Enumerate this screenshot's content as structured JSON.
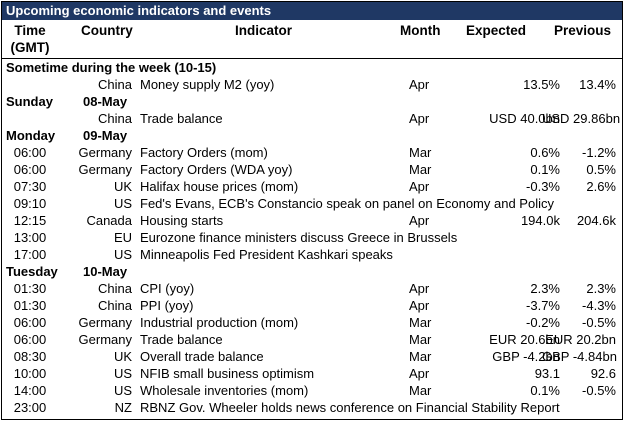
{
  "title": "Upcoming economic indicators and events",
  "headers": {
    "time": "Time",
    "time_sub": "(GMT)",
    "country": "Country",
    "indicator": "Indicator",
    "month": "Month",
    "expected": "Expected",
    "previous": "Previous"
  },
  "sections": [
    {
      "label": "Sometime during the week (10-15)",
      "day": "",
      "date": "",
      "rows": [
        {
          "time": "",
          "country": "China",
          "indicator": "Money supply M2 (yoy)",
          "month": "Apr",
          "expected": "13.5%",
          "previous": "13.4%"
        }
      ]
    },
    {
      "label": "",
      "day": "Sunday",
      "date": "08-May",
      "rows": [
        {
          "time": "",
          "country": "China",
          "indicator": "Trade balance",
          "month": "Apr",
          "expected": "USD 40.0bn",
          "previous": "USD 29.86bn"
        }
      ]
    },
    {
      "label": "",
      "day": "Monday",
      "date": "09-May",
      "rows": [
        {
          "time": "06:00",
          "country": "Germany",
          "indicator": "Factory Orders (mom)",
          "month": "Mar",
          "expected": "0.6%",
          "previous": "-1.2%"
        },
        {
          "time": "06:00",
          "country": "Germany",
          "indicator": "Factory Orders (WDA yoy)",
          "month": "Mar",
          "expected": "0.1%",
          "previous": "0.5%"
        },
        {
          "time": "07:30",
          "country": "UK",
          "indicator": "Halifax house prices (mom)",
          "month": "Apr",
          "expected": "-0.3%",
          "previous": "2.6%"
        },
        {
          "time": "09:10",
          "country": "US",
          "indicator": "Fed's Evans, ECB's Constancio speak on panel on Economy and Policy",
          "month": "",
          "expected": "",
          "previous": ""
        },
        {
          "time": "12:15",
          "country": "Canada",
          "indicator": "Housing starts",
          "month": "Apr",
          "expected": "194.0k",
          "previous": "204.6k"
        },
        {
          "time": "13:00",
          "country": "EU",
          "indicator": "Eurozone finance ministers discuss Greece in Brussels",
          "month": "",
          "expected": "",
          "previous": ""
        },
        {
          "time": "17:00",
          "country": "US",
          "indicator": "Minneapolis Fed President Kashkari speaks",
          "month": "",
          "expected": "",
          "previous": ""
        }
      ]
    },
    {
      "label": "",
      "day": "Tuesday",
      "date": "10-May",
      "rows": [
        {
          "time": "01:30",
          "country": "China",
          "indicator": "CPI (yoy)",
          "month": "Apr",
          "expected": "2.3%",
          "previous": "2.3%"
        },
        {
          "time": "01:30",
          "country": "China",
          "indicator": "PPI (yoy)",
          "month": "Apr",
          "expected": "-3.7%",
          "previous": "-4.3%"
        },
        {
          "time": "06:00",
          "country": "Germany",
          "indicator": "Industrial production (mom)",
          "month": "Mar",
          "expected": "-0.2%",
          "previous": "-0.5%"
        },
        {
          "time": "06:00",
          "country": "Germany",
          "indicator": "Trade balance",
          "month": "Mar",
          "expected": "EUR 20.6bn",
          "previous": "EUR 20.2bn"
        },
        {
          "time": "08:30",
          "country": "UK",
          "indicator": "Overall trade balance",
          "month": "Mar",
          "expected": "GBP -4.2bn",
          "previous": "GBP -4.84bn"
        },
        {
          "time": "10:00",
          "country": "US",
          "indicator": "NFIB small business optimism",
          "month": "Apr",
          "expected": "93.1",
          "previous": "92.6"
        },
        {
          "time": "14:00",
          "country": "US",
          "indicator": "Wholesale inventories (mom)",
          "month": "Mar",
          "expected": "0.1%",
          "previous": "-0.5%"
        },
        {
          "time": "23:00",
          "country": "NZ",
          "indicator": "RBNZ Gov. Wheeler holds news conference on Financial Stability Report",
          "month": "",
          "expected": "",
          "previous": ""
        }
      ]
    }
  ]
}
